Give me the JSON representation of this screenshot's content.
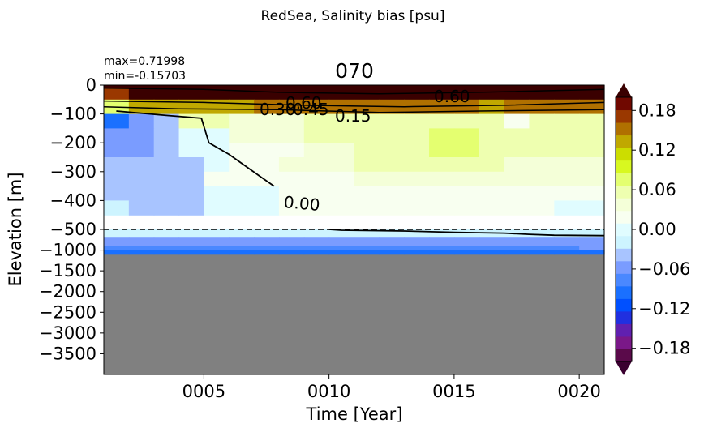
{
  "chart_data": {
    "type": "heatmap",
    "suptitle": "RedSea, Salinity bias [psu]",
    "title": "070",
    "stats": {
      "max": "max=0.71998",
      "min": "min=-0.15703"
    },
    "xlabel": "Time [Year]",
    "ylabel": "Elevation [m]",
    "x_ticks": [
      "0005",
      "0010",
      "0015",
      "0020"
    ],
    "x_tick_values": [
      5,
      10,
      15,
      20
    ],
    "xlim": [
      1,
      21
    ],
    "y_ticks_upper": [
      "0",
      "−100",
      "−200",
      "−300",
      "−400",
      "−500"
    ],
    "y_ticks_lower": [
      "−1000",
      "−1500",
      "−2000",
      "−2500",
      "−3000",
      "−3500"
    ],
    "upper_ylim": [
      -500,
      0
    ],
    "lower_ylim": [
      -4000,
      -500
    ],
    "split_depth": -500,
    "colorbar": {
      "ticks": [
        "0.18",
        "0.12",
        "0.06",
        "0.00",
        "−0.06",
        "−0.12",
        "−0.18"
      ],
      "tick_values": [
        0.18,
        0.12,
        0.06,
        0.0,
        -0.06,
        -0.12,
        -0.18
      ],
      "range": [
        -0.2,
        0.2
      ],
      "extend": "both",
      "colors": [
        "#3a0030",
        "#5a0a4a",
        "#7a1888",
        "#6020b0",
        "#2030e0",
        "#0050ff",
        "#1a70ff",
        "#4a88ff",
        "#7a9cff",
        "#a8c4ff",
        "#cdf4ff",
        "#e0fcff",
        "#f8fff0",
        "#f4ffd8",
        "#eeffb0",
        "#e4ff70",
        "#d8f820",
        "#ccdd00",
        "#c0a800",
        "#b07000",
        "#9a3800",
        "#700800",
        "#3a0000"
      ]
    },
    "contour_labels": [
      "0.60",
      "0.60",
      "0.30",
      "0.45",
      "0.15",
      "0.00"
    ],
    "missing_color": "#808080",
    "depth_bins": [
      -10,
      -50,
      -100,
      -150,
      -200,
      -250,
      -300,
      -350,
      -400,
      -450,
      -500
    ],
    "shallow_rows": [
      [
        0.22,
        0.22,
        0.22,
        0.22,
        0.22,
        0.22,
        0.22,
        0.22,
        0.22,
        0.22,
        0.22,
        0.22,
        0.22,
        0.22,
        0.22,
        0.22,
        0.22,
        0.22,
        0.22,
        0.22
      ],
      [
        0.17,
        0.22,
        0.22,
        0.22,
        0.22,
        0.22,
        0.22,
        0.22,
        0.22,
        0.22,
        0.22,
        0.22,
        0.22,
        0.22,
        0.22,
        0.22,
        0.22,
        0.22,
        0.22,
        0.22
      ],
      [
        0.08,
        0.13,
        0.13,
        0.13,
        0.13,
        0.13,
        0.15,
        0.15,
        0.15,
        0.15,
        0.15,
        0.15,
        0.15,
        0.15,
        0.15,
        0.13,
        0.15,
        0.15,
        0.15,
        0.15
      ],
      [
        -0.09,
        -0.05,
        -0.03,
        0.05,
        0.05,
        0.03,
        0.03,
        0.04,
        0.05,
        0.05,
        0.05,
        0.06,
        0.06,
        0.06,
        0.06,
        0.05,
        0.01,
        0.05,
        0.05,
        0.05
      ],
      [
        -0.05,
        -0.05,
        -0.03,
        0.0,
        0.0,
        0.03,
        0.03,
        0.04,
        0.05,
        0.05,
        0.05,
        0.06,
        0.06,
        0.07,
        0.07,
        0.06,
        0.05,
        0.05,
        0.05,
        0.05
      ],
      [
        -0.05,
        -0.05,
        -0.03,
        0.0,
        0.0,
        0.02,
        0.02,
        0.02,
        0.04,
        0.04,
        0.05,
        0.06,
        0.06,
        0.07,
        0.07,
        0.06,
        0.05,
        0.05,
        0.05,
        0.05
      ],
      [
        -0.04,
        -0.04,
        -0.03,
        -0.03,
        0.0,
        0.02,
        0.02,
        0.03,
        0.04,
        0.04,
        0.05,
        0.05,
        0.05,
        0.05,
        0.05,
        0.05,
        0.04,
        0.04,
        0.04,
        0.04
      ],
      [
        -0.03,
        -0.04,
        -0.04,
        -0.03,
        0.01,
        0.01,
        0.01,
        0.01,
        0.02,
        0.02,
        0.03,
        0.04,
        0.04,
        0.04,
        0.04,
        0.04,
        0.04,
        0.03,
        0.03,
        0.03
      ],
      [
        -0.03,
        -0.03,
        -0.04,
        -0.03,
        0.0,
        0.0,
        0.0,
        0.01,
        0.01,
        0.01,
        0.02,
        0.02,
        0.02,
        0.02,
        0.02,
        0.02,
        0.02,
        0.02,
        0.01,
        0.01
      ],
      [
        -0.01,
        -0.03,
        -0.03,
        -0.03,
        0.0,
        0.0,
        0.0,
        0.01,
        0.01,
        0.01,
        0.01,
        0.01,
        0.01,
        0.01,
        0.01,
        0.01,
        0.01,
        0.01,
        0.0,
        0.0
      ]
    ],
    "deep_rows": [
      {
        "depth": [
          -500,
          -700
        ],
        "values": [
          -0.01,
          -0.01,
          -0.01,
          -0.01,
          -0.01,
          -0.01,
          -0.01,
          -0.01,
          -0.01,
          -0.01,
          -0.01,
          -0.01,
          -0.02,
          -0.02,
          -0.02,
          -0.02,
          -0.02,
          -0.02,
          -0.02,
          -0.02
        ]
      },
      {
        "depth": [
          -700,
          -900
        ],
        "values": [
          -0.05,
          -0.05,
          -0.05,
          -0.05,
          -0.05,
          -0.05,
          -0.05,
          -0.05,
          -0.05,
          -0.05,
          -0.05,
          -0.05,
          -0.05,
          -0.05,
          -0.05,
          -0.05,
          -0.05,
          -0.05,
          -0.05,
          -0.06
        ]
      },
      {
        "depth": [
          -900,
          -1000
        ],
        "values": [
          -0.07,
          -0.07,
          -0.07,
          -0.07,
          -0.07,
          -0.07,
          -0.07,
          -0.07,
          -0.07,
          -0.07,
          -0.07,
          -0.07,
          -0.07,
          -0.07,
          -0.07,
          -0.07,
          -0.07,
          -0.07,
          -0.07,
          -0.06
        ]
      },
      {
        "depth": [
          -1000,
          -1100
        ],
        "values": [
          -0.09,
          -0.09,
          -0.09,
          -0.09,
          -0.09,
          -0.09,
          -0.09,
          -0.09,
          -0.09,
          -0.09,
          -0.09,
          -0.09,
          -0.09,
          -0.09,
          -0.09,
          -0.09,
          -0.09,
          -0.09,
          -0.09,
          -0.09
        ]
      }
    ],
    "zero_contour": {
      "upper": [
        [
          1.5,
          -90
        ],
        [
          3.5,
          -105
        ],
        [
          4.9,
          -115
        ],
        [
          5.2,
          -200
        ],
        [
          6,
          -240
        ],
        [
          7.3,
          -320
        ],
        [
          7.8,
          -350
        ]
      ],
      "lower": [
        [
          10,
          -500
        ],
        [
          10.5,
          -520
        ],
        [
          13,
          -540
        ],
        [
          15,
          -570
        ],
        [
          17,
          -590
        ],
        [
          18,
          -620
        ],
        [
          19,
          -640
        ],
        [
          21,
          -650
        ]
      ]
    },
    "strong_contours": [
      [
        [
          1,
          -10
        ],
        [
          5,
          -15
        ],
        [
          8,
          -25
        ],
        [
          12,
          -30
        ],
        [
          16,
          -25
        ],
        [
          21,
          -15
        ]
      ],
      [
        [
          1,
          -55
        ],
        [
          5,
          -60
        ],
        [
          9,
          -70
        ],
        [
          13,
          -75
        ],
        [
          17,
          -70
        ],
        [
          21,
          -60
        ]
      ],
      [
        [
          1,
          -75
        ],
        [
          4,
          -82
        ],
        [
          8,
          -85
        ],
        [
          12,
          -95
        ],
        [
          16,
          -90
        ],
        [
          21,
          -85
        ]
      ]
    ]
  }
}
